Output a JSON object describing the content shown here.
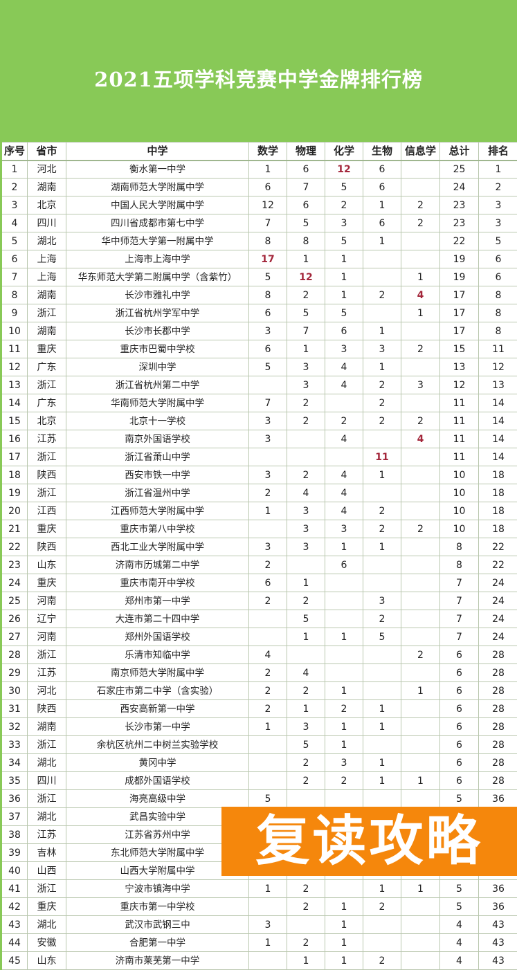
{
  "title": "2021五项学科竞赛中学金牌排行榜",
  "colors": {
    "banner": "#88c957",
    "highlight": "#a3263a",
    "watermark": "#f5870c"
  },
  "columns": [
    "序号",
    "省市",
    "中学",
    "数学",
    "物理",
    "化学",
    "生物",
    "信息学",
    "总计",
    "排名"
  ],
  "rows": [
    {
      "cells": [
        "1",
        "河北",
        "衡水第一中学",
        "1",
        "6",
        "12",
        "6",
        "",
        "25",
        "1"
      ],
      "highlight": [
        5
      ]
    },
    {
      "cells": [
        "2",
        "湖南",
        "湖南师范大学附属中学",
        "6",
        "7",
        "5",
        "6",
        "",
        "24",
        "2"
      ]
    },
    {
      "cells": [
        "3",
        "北京",
        "中国人民大学附属中学",
        "12",
        "6",
        "2",
        "1",
        "2",
        "23",
        "3"
      ]
    },
    {
      "cells": [
        "4",
        "四川",
        "四川省成都市第七中学",
        "7",
        "5",
        "3",
        "6",
        "2",
        "23",
        "3"
      ]
    },
    {
      "cells": [
        "5",
        "湖北",
        "华中师范大学第一附属中学",
        "8",
        "8",
        "5",
        "1",
        "",
        "22",
        "5"
      ]
    },
    {
      "cells": [
        "6",
        "上海",
        "上海市上海中学",
        "17",
        "1",
        "1",
        "",
        "",
        "19",
        "6"
      ],
      "highlight": [
        3
      ]
    },
    {
      "cells": [
        "7",
        "上海",
        "华东师范大学第二附属中学（含紫竹）",
        "5",
        "12",
        "1",
        "",
        "1",
        "19",
        "6"
      ],
      "highlight": [
        4
      ]
    },
    {
      "cells": [
        "8",
        "湖南",
        "长沙市雅礼中学",
        "8",
        "2",
        "1",
        "2",
        "4",
        "17",
        "8"
      ],
      "highlight": [
        7
      ]
    },
    {
      "cells": [
        "9",
        "浙江",
        "浙江省杭州学军中学",
        "6",
        "5",
        "5",
        "",
        "1",
        "17",
        "8"
      ]
    },
    {
      "cells": [
        "10",
        "湖南",
        "长沙市长郡中学",
        "3",
        "7",
        "6",
        "1",
        "",
        "17",
        "8"
      ]
    },
    {
      "cells": [
        "11",
        "重庆",
        "重庆市巴蜀中学校",
        "6",
        "1",
        "3",
        "3",
        "2",
        "15",
        "11"
      ]
    },
    {
      "cells": [
        "12",
        "广东",
        "深圳中学",
        "5",
        "3",
        "4",
        "1",
        "",
        "13",
        "12"
      ]
    },
    {
      "cells": [
        "13",
        "浙江",
        "浙江省杭州第二中学",
        "",
        "3",
        "4",
        "2",
        "3",
        "12",
        "13"
      ]
    },
    {
      "cells": [
        "14",
        "广东",
        "华南师范大学附属中学",
        "7",
        "2",
        "",
        "2",
        "",
        "11",
        "14"
      ]
    },
    {
      "cells": [
        "15",
        "北京",
        "北京十一学校",
        "3",
        "2",
        "2",
        "2",
        "2",
        "11",
        "14"
      ]
    },
    {
      "cells": [
        "16",
        "江苏",
        "南京外国语学校",
        "3",
        "",
        "4",
        "",
        "4",
        "11",
        "14"
      ],
      "highlight": [
        7
      ]
    },
    {
      "cells": [
        "17",
        "浙江",
        "浙江省萧山中学",
        "",
        "",
        "",
        "11",
        "",
        "11",
        "14"
      ],
      "highlight": [
        6
      ]
    },
    {
      "cells": [
        "18",
        "陕西",
        "西安市铁一中学",
        "3",
        "2",
        "4",
        "1",
        "",
        "10",
        "18"
      ]
    },
    {
      "cells": [
        "19",
        "浙江",
        "浙江省温州中学",
        "2",
        "4",
        "4",
        "",
        "",
        "10",
        "18"
      ]
    },
    {
      "cells": [
        "20",
        "江西",
        "江西师范大学附属中学",
        "1",
        "3",
        "4",
        "2",
        "",
        "10",
        "18"
      ]
    },
    {
      "cells": [
        "21",
        "重庆",
        "重庆市第八中学校",
        "",
        "3",
        "3",
        "2",
        "2",
        "10",
        "18"
      ]
    },
    {
      "cells": [
        "22",
        "陕西",
        "西北工业大学附属中学",
        "3",
        "3",
        "1",
        "1",
        "",
        "8",
        "22"
      ]
    },
    {
      "cells": [
        "23",
        "山东",
        "济南市历城第二中学",
        "2",
        "",
        "6",
        "",
        "",
        "8",
        "22"
      ]
    },
    {
      "cells": [
        "24",
        "重庆",
        "重庆市南开中学校",
        "6",
        "1",
        "",
        "",
        "",
        "7",
        "24"
      ]
    },
    {
      "cells": [
        "25",
        "河南",
        "郑州市第一中学",
        "2",
        "2",
        "",
        "3",
        "",
        "7",
        "24"
      ]
    },
    {
      "cells": [
        "26",
        "辽宁",
        "大连市第二十四中学",
        "",
        "5",
        "",
        "2",
        "",
        "7",
        "24"
      ]
    },
    {
      "cells": [
        "27",
        "河南",
        "郑州外国语学校",
        "",
        "1",
        "1",
        "5",
        "",
        "7",
        "24"
      ]
    },
    {
      "cells": [
        "28",
        "浙江",
        "乐清市知临中学",
        "4",
        "",
        "",
        "",
        "2",
        "6",
        "28"
      ]
    },
    {
      "cells": [
        "29",
        "江苏",
        "南京师范大学附属中学",
        "2",
        "4",
        "",
        "",
        "",
        "6",
        "28"
      ]
    },
    {
      "cells": [
        "30",
        "河北",
        "石家庄市第二中学（含实验）",
        "2",
        "2",
        "1",
        "",
        "1",
        "6",
        "28"
      ]
    },
    {
      "cells": [
        "31",
        "陕西",
        "西安高新第一中学",
        "2",
        "1",
        "2",
        "1",
        "",
        "6",
        "28"
      ]
    },
    {
      "cells": [
        "32",
        "湖南",
        "长沙市第一中学",
        "1",
        "3",
        "1",
        "1",
        "",
        "6",
        "28"
      ]
    },
    {
      "cells": [
        "33",
        "浙江",
        "余杭区杭州二中树兰实验学校",
        "",
        "5",
        "1",
        "",
        "",
        "6",
        "28"
      ]
    },
    {
      "cells": [
        "34",
        "湖北",
        "黄冈中学",
        "",
        "2",
        "3",
        "1",
        "",
        "6",
        "28"
      ]
    },
    {
      "cells": [
        "35",
        "四川",
        "成都外国语学校",
        "",
        "2",
        "2",
        "1",
        "1",
        "6",
        "28"
      ]
    },
    {
      "cells": [
        "36",
        "浙江",
        "海亮高级中学",
        "5",
        "",
        "",
        "",
        "",
        "5",
        "36"
      ]
    },
    {
      "cells": [
        "37",
        "湖北",
        "武昌实验中学",
        "",
        "",
        "",
        "",
        "",
        "",
        ""
      ]
    },
    {
      "cells": [
        "38",
        "江苏",
        "江苏省苏州中学",
        "",
        "",
        "",
        "",
        "",
        "",
        ""
      ]
    },
    {
      "cells": [
        "39",
        "吉林",
        "东北师范大学附属中学",
        "",
        "",
        "",
        "",
        "",
        "",
        ""
      ]
    },
    {
      "cells": [
        "40",
        "山西",
        "山西大学附属中学",
        "",
        "",
        "",
        "",
        "",
        "",
        ""
      ]
    },
    {
      "cells": [
        "41",
        "浙江",
        "宁波市镇海中学",
        "1",
        "2",
        "",
        "1",
        "1",
        "5",
        "36"
      ]
    },
    {
      "cells": [
        "42",
        "重庆",
        "重庆市第一中学校",
        "",
        "2",
        "1",
        "2",
        "",
        "5",
        "36"
      ]
    },
    {
      "cells": [
        "43",
        "湖北",
        "武汉市武钢三中",
        "3",
        "",
        "1",
        "",
        "",
        "4",
        "43"
      ]
    },
    {
      "cells": [
        "44",
        "安徽",
        "合肥第一中学",
        "1",
        "2",
        "1",
        "",
        "",
        "4",
        "43"
      ]
    },
    {
      "cells": [
        "45",
        "山东",
        "济南市莱芜第一中学",
        "",
        "1",
        "1",
        "2",
        "",
        "4",
        "43"
      ]
    }
  ],
  "watermark": "复读攻略"
}
